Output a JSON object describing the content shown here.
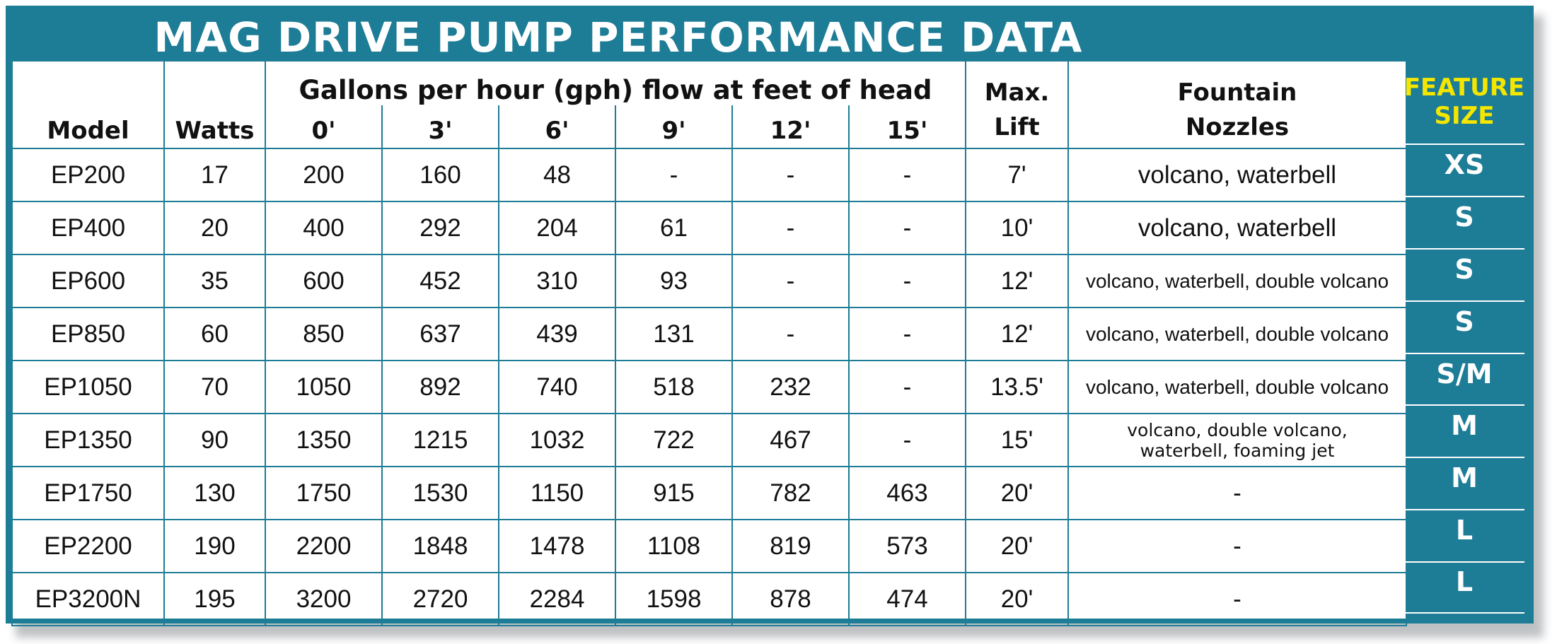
{
  "title": "MAG DRIVE PUMP PERFORMANCE DATA",
  "headers": {
    "model": "Model",
    "watts": "Watts",
    "flow_group": "Gallons per hour (gph) flow at feet of head",
    "heads": [
      "0'",
      "3'",
      "6'",
      "9'",
      "12'",
      "15'"
    ],
    "max_lift_line1": "Max.",
    "max_lift_line2": "Lift",
    "nozzles_line1": "Fountain",
    "nozzles_line2": "Nozzles",
    "feature_line1": "FEATURE",
    "feature_line2": "SIZE"
  },
  "rows": [
    {
      "model": "EP200",
      "watts": "17",
      "flows": [
        "200",
        "160",
        "48",
        "-",
        "-",
        "-"
      ],
      "max_lift": "7'",
      "nozzles": "volcano, waterbell",
      "nozzles_style": "large",
      "size": "XS"
    },
    {
      "model": "EP400",
      "watts": "20",
      "flows": [
        "400",
        "292",
        "204",
        "61",
        "-",
        "-"
      ],
      "max_lift": "10'",
      "nozzles": "volcano, waterbell",
      "nozzles_style": "large",
      "size": "S"
    },
    {
      "model": "EP600",
      "watts": "35",
      "flows": [
        "600",
        "452",
        "310",
        "93",
        "-",
        "-"
      ],
      "max_lift": "12'",
      "nozzles": "volcano, waterbell, double volcano",
      "nozzles_style": "small",
      "size": "S"
    },
    {
      "model": "EP850",
      "watts": "60",
      "flows": [
        "850",
        "637",
        "439",
        "131",
        "-",
        "-"
      ],
      "max_lift": "12'",
      "nozzles": "volcano, waterbell, double volcano",
      "nozzles_style": "small",
      "size": "S"
    },
    {
      "model": "EP1050",
      "watts": "70",
      "flows": [
        "1050",
        "892",
        "740",
        "518",
        "232",
        "-"
      ],
      "max_lift": "13.5'",
      "nozzles": "volcano, waterbell, double volcano",
      "nozzles_style": "small",
      "size": "S/M"
    },
    {
      "model": "EP1350",
      "watts": "90",
      "flows": [
        "1350",
        "1215",
        "1032",
        "722",
        "467",
        "-"
      ],
      "max_lift": "15'",
      "nozzles_line1": "volcano, double volcano,",
      "nozzles_line2": "waterbell, foaming jet",
      "nozzles_style": "two",
      "size": "M"
    },
    {
      "model": "EP1750",
      "watts": "130",
      "flows": [
        "1750",
        "1530",
        "1150",
        "915",
        "782",
        "463"
      ],
      "max_lift": "20'",
      "nozzles": "-",
      "nozzles_style": "large",
      "size": "M"
    },
    {
      "model": "EP2200",
      "watts": "190",
      "flows": [
        "2200",
        "1848",
        "1478",
        "1108",
        "819",
        "573"
      ],
      "max_lift": "20'",
      "nozzles": "-",
      "nozzles_style": "large",
      "size": "L"
    },
    {
      "model": "EP3200N",
      "watts": "195",
      "flows": [
        "3200",
        "2720",
        "2284",
        "1598",
        "878",
        "474"
      ],
      "max_lift": "20'",
      "nozzles": "-",
      "nozzles_style": "large",
      "size": "L"
    }
  ],
  "colors": {
    "frame": "#1d7c96",
    "feature_header": "#f5e600",
    "title": "#ffffff"
  }
}
